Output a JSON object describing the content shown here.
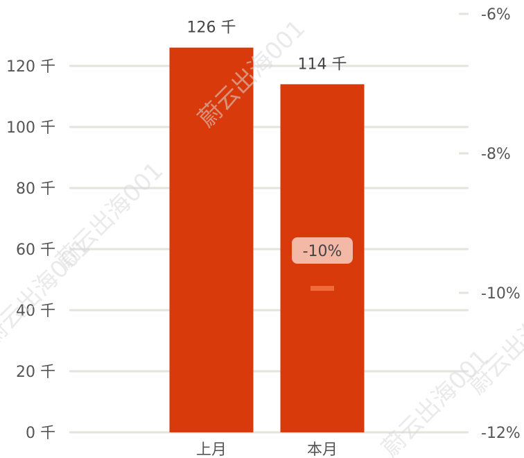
{
  "chart_data": {
    "type": "bar",
    "categories": [
      "上月",
      "本月"
    ],
    "values": [
      126,
      114
    ],
    "value_labels": [
      "126 千",
      "114 千"
    ],
    "ylim": [
      0,
      130
    ],
    "yticks": [
      0,
      20,
      40,
      60,
      80,
      100,
      120
    ],
    "ytick_labels": [
      "0 千",
      "20 千",
      "40 千",
      "60 千",
      "80 千",
      "100 千",
      "120 千"
    ],
    "secondary_axis": {
      "ticks": [
        -6,
        -8,
        -10,
        -12
      ],
      "tick_labels": [
        "-6%",
        "-8%",
        "-10%",
        "-12%"
      ],
      "range": [
        -12,
        -6
      ]
    },
    "change_indicator": {
      "category": "本月",
      "value": -10,
      "label": "-10%"
    },
    "grid": true,
    "bar_color": "#d93a0b",
    "marker_color": "#f06a3a",
    "badge_color": "#f3b9a6",
    "grid_color": "#e6e2dc"
  },
  "watermark": "蔚云出海001"
}
